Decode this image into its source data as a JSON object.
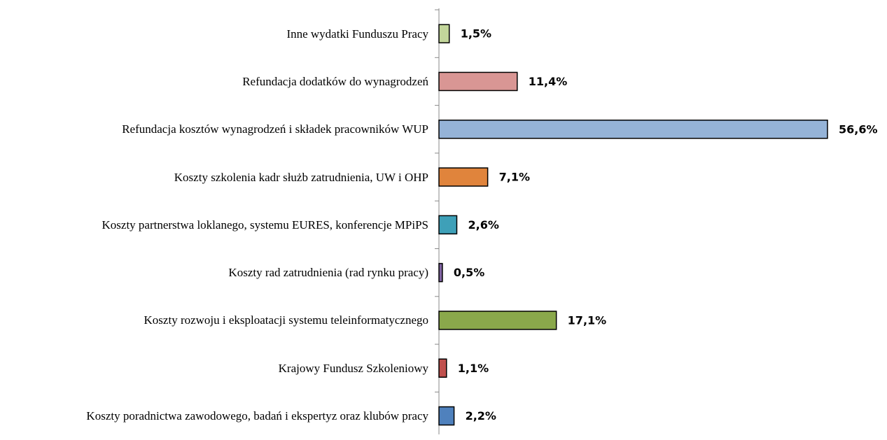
{
  "chart_data": {
    "type": "barh",
    "categories": [
      "Inne wydatki Funduszu Pracy",
      "Refundacja dodatków do wynagrodzeń",
      "Refundacja kosztów wynagrodzeń i składek pracowników WUP",
      "Koszty szkolenia kadr służb zatrudnienia, UW i OHP",
      "Koszty partnerstwa loklanego, systemu EURES, konferencje MPiPS",
      "Koszty rad zatrudnienia (rad rynku pracy)",
      "Koszty rozwoju i eksploatacji systemu teleinformatycznego",
      "Krajowy Fundusz Szkoleniowy",
      "Koszty poradnictwa zawodowego, badań i ekspertyz oraz klubów pracy"
    ],
    "values": [
      1.5,
      11.4,
      56.6,
      7.1,
      2.6,
      0.5,
      17.1,
      1.1,
      2.2
    ],
    "value_labels": [
      "1,5%",
      "11,4%",
      "56,6%",
      "7,1%",
      "2,6%",
      "0,5%",
      "17,1%",
      "1,1%",
      "2,2%"
    ],
    "colors": [
      "#c3d69b",
      "#d99694",
      "#95b3d7",
      "#e0843c",
      "#3ea0b8",
      "#8064a2",
      "#8aa84b",
      "#c0504d",
      "#4f81bd"
    ]
  }
}
